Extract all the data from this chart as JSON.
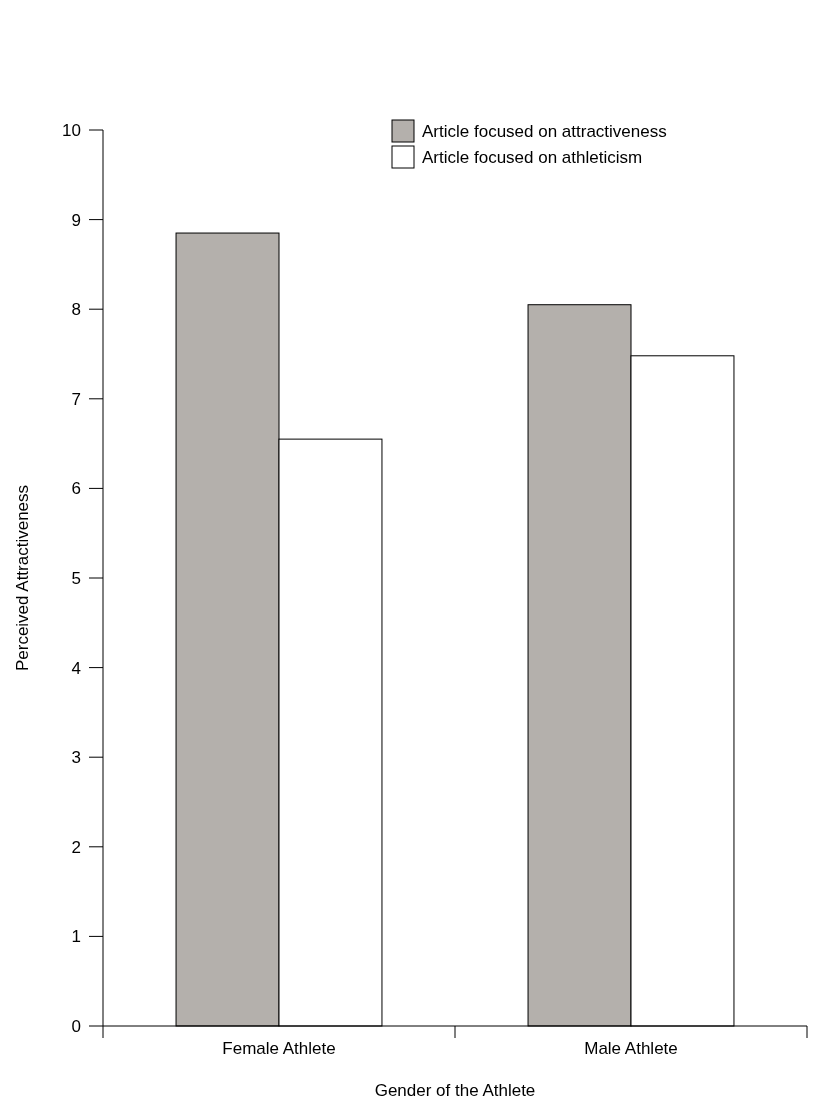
{
  "chart_data": {
    "type": "bar",
    "xlabel": "Gender of the Athlete",
    "ylabel": "Perceived Attractiveness",
    "categories": [
      "Female Athlete",
      "Male Athlete"
    ],
    "series": [
      {
        "name": "Article focused on attractiveness",
        "color": "#b4b0ac",
        "values": [
          8.85,
          8.05
        ]
      },
      {
        "name": "Article focused on athleticism",
        "color": "#ffffff",
        "values": [
          6.55,
          7.48
        ]
      }
    ],
    "ylim": [
      0,
      10
    ],
    "yticks": [
      0,
      1,
      2,
      3,
      4,
      5,
      6,
      7,
      8,
      9,
      10
    ],
    "legend": "top right",
    "grid": false
  }
}
